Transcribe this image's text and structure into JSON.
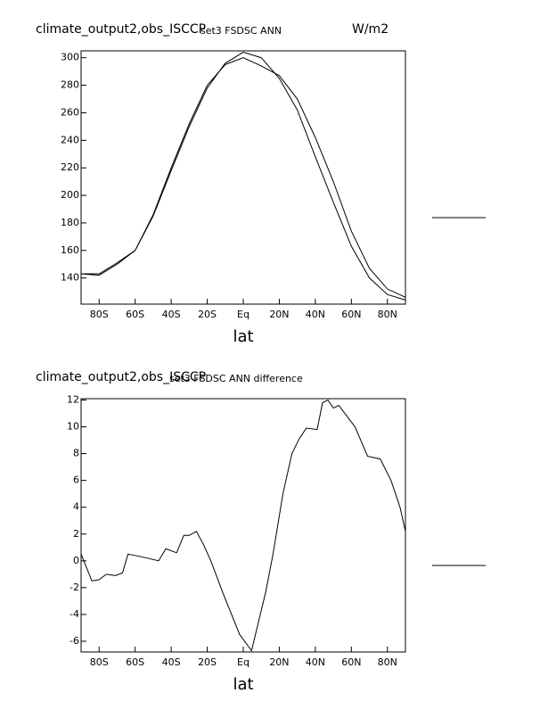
{
  "chart_data": [
    {
      "type": "line",
      "title": "climate_output2,obs_ISCCP",
      "subtitle": "set3 FSDSC ANN",
      "units": "W/m2",
      "x_label": "lat",
      "x": [
        -90,
        -80,
        -70,
        -60,
        -50,
        -40,
        -30,
        -20,
        -10,
        0,
        10,
        20,
        30,
        40,
        50,
        60,
        70,
        80,
        90
      ],
      "series": [
        {
          "color": "#000000",
          "values": [
            143,
            142,
            150,
            160,
            185,
            218,
            250,
            278,
            296,
            304,
            300,
            285,
            262,
            228,
            195,
            163,
            140,
            128,
            124
          ]
        },
        {
          "color": "#000000",
          "values": [
            143,
            143,
            151,
            160,
            186,
            220,
            252,
            280,
            295,
            300,
            294,
            287,
            270,
            242,
            210,
            174,
            147,
            132,
            126
          ]
        }
      ],
      "xlim": [
        -90,
        90
      ],
      "xticks": [
        {
          "value": -80,
          "label": "80S"
        },
        {
          "value": -60,
          "label": "60S"
        },
        {
          "value": -40,
          "label": "40S"
        },
        {
          "value": -20,
          "label": "20S"
        },
        {
          "value": 0,
          "label": "Eq"
        },
        {
          "value": 20,
          "label": "20N"
        },
        {
          "value": 40,
          "label": "40N"
        },
        {
          "value": 60,
          "label": "60N"
        },
        {
          "value": 80,
          "label": "80N"
        }
      ],
      "ylim": [
        121,
        305
      ],
      "yticks": [
        140,
        160,
        180,
        200,
        220,
        240,
        260,
        280,
        300
      ],
      "grid": false
    },
    {
      "type": "line",
      "title": "climate_output2,obs_ISCCP",
      "subtitle": "set3 FSDSC ANN difference",
      "x_label": "lat",
      "x": [
        -90,
        -84,
        -80,
        -76,
        -71,
        -67,
        -64,
        -60,
        -53,
        -47,
        -43,
        -37,
        -33,
        -30,
        -26,
        -22,
        -18,
        -11,
        -2,
        4.6,
        12.5,
        16.5,
        22,
        27,
        31,
        35,
        41,
        44,
        47,
        50,
        53,
        62,
        69,
        76,
        82,
        87,
        90
      ],
      "series": [
        {
          "color": "#000000",
          "values": [
            0.5,
            -1.5,
            -1.4,
            -1.0,
            -1.1,
            -0.9,
            0.5,
            0.4,
            0.2,
            0.0,
            0.9,
            0.6,
            1.9,
            1.9,
            2.2,
            1.2,
            0.0,
            -2.5,
            -5.5,
            -6.7,
            -2.3,
            0.5,
            5.0,
            8.0,
            9.1,
            9.9,
            9.8,
            11.8,
            12.0,
            11.4,
            11.6,
            10.0,
            7.8,
            7.6,
            6.0,
            4.0,
            2.2
          ]
        }
      ],
      "xlim": [
        -90,
        90
      ],
      "xticks": [
        {
          "value": -80,
          "label": "80S"
        },
        {
          "value": -60,
          "label": "60S"
        },
        {
          "value": -40,
          "label": "40S"
        },
        {
          "value": -20,
          "label": "20S"
        },
        {
          "value": 0,
          "label": "Eq"
        },
        {
          "value": 20,
          "label": "20N"
        },
        {
          "value": 40,
          "label": "40N"
        },
        {
          "value": 60,
          "label": "60N"
        },
        {
          "value": 80,
          "label": "80N"
        }
      ],
      "ylim": [
        -6.8,
        12.1
      ],
      "yticks": [
        -6,
        -4,
        -2,
        0,
        2,
        4,
        6,
        8,
        10,
        12
      ],
      "grid": false
    }
  ]
}
